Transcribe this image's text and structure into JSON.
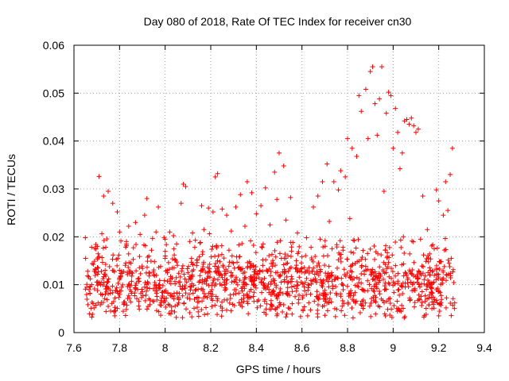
{
  "chart_data": {
    "type": "scatter",
    "title": "Day 080 of 2018, Rate Of TEC Index for receiver cn30",
    "xlabel": "GPS time / hours",
    "ylabel": "ROTI / TECUs",
    "xlim": [
      7.6,
      9.4
    ],
    "ylim": [
      0,
      0.06
    ],
    "xticks": [
      "7.6",
      "7.8",
      "8",
      "8.2",
      "8.4",
      "8.6",
      "8.8",
      "9",
      "9.2",
      "9.4"
    ],
    "yticks": [
      "0",
      "0.01",
      "0.02",
      "0.03",
      "0.04",
      "0.05",
      "0.06"
    ],
    "grid": true,
    "marker": "+",
    "marker_color": "#ff0000",
    "x_range_of_points": [
      7.65,
      9.27
    ],
    "series": [
      {
        "name": "ROTI",
        "points": [
          [
            7.65,
            0.0198
          ],
          [
            7.66,
            0.0128
          ],
          [
            7.67,
            0.0082
          ],
          [
            7.69,
            0.0149
          ],
          [
            7.7,
            0.0105
          ],
          [
            7.71,
            0.0326
          ],
          [
            7.72,
            0.0063
          ],
          [
            7.73,
            0.0285
          ],
          [
            7.74,
            0.0118
          ],
          [
            7.75,
            0.0295
          ],
          [
            7.76,
            0.0082
          ],
          [
            7.77,
            0.027
          ],
          [
            7.78,
            0.0072
          ],
          [
            7.79,
            0.0252
          ],
          [
            7.8,
            0.021
          ],
          [
            7.81,
            0.0128
          ],
          [
            7.82,
            0.006
          ],
          [
            7.83,
            0.0185
          ],
          [
            7.84,
            0.0222
          ],
          [
            7.85,
            0.0098
          ],
          [
            7.86,
            0.0153
          ],
          [
            7.87,
            0.023
          ],
          [
            7.88,
            0.0112
          ],
          [
            7.89,
            0.0205
          ],
          [
            7.9,
            0.0085
          ],
          [
            7.91,
            0.0245
          ],
          [
            7.92,
            0.028
          ],
          [
            7.93,
            0.0118
          ],
          [
            7.94,
            0.0172
          ],
          [
            7.95,
            0.0065
          ],
          [
            7.96,
            0.021
          ],
          [
            7.97,
            0.0262
          ],
          [
            7.98,
            0.0138
          ],
          [
            7.99,
            0.0098
          ],
          [
            8.0,
            0.0195
          ],
          [
            8.01,
            0.0125
          ],
          [
            8.02,
            0.021
          ],
          [
            8.03,
            0.0075
          ],
          [
            8.04,
            0.0162
          ],
          [
            8.05,
            0.0185
          ],
          [
            8.06,
            0.0105
          ],
          [
            8.07,
            0.027
          ],
          [
            8.08,
            0.031
          ],
          [
            8.09,
            0.0305
          ],
          [
            8.1,
            0.0125
          ],
          [
            8.11,
            0.0095
          ],
          [
            8.12,
            0.0208
          ],
          [
            8.13,
            0.0178
          ],
          [
            8.14,
            0.0072
          ],
          [
            8.15,
            0.0158
          ],
          [
            8.16,
            0.0265
          ],
          [
            8.17,
            0.0215
          ],
          [
            8.18,
            0.0108
          ],
          [
            8.19,
            0.026
          ],
          [
            8.2,
            0.0082
          ],
          [
            8.21,
            0.0252
          ],
          [
            8.22,
            0.0325
          ],
          [
            8.23,
            0.0332
          ],
          [
            8.24,
            0.0148
          ],
          [
            8.25,
            0.0258
          ],
          [
            8.26,
            0.01
          ],
          [
            8.27,
            0.0245
          ],
          [
            8.28,
            0.0172
          ],
          [
            8.29,
            0.0212
          ],
          [
            8.3,
            0.008
          ],
          [
            8.31,
            0.0262
          ],
          [
            8.32,
            0.0135
          ],
          [
            8.33,
            0.0288
          ],
          [
            8.34,
            0.0095
          ],
          [
            8.35,
            0.0222
          ],
          [
            8.36,
            0.0315
          ],
          [
            8.37,
            0.0148
          ],
          [
            8.38,
            0.0292
          ],
          [
            8.39,
            0.0108
          ],
          [
            8.4,
            0.0248
          ],
          [
            8.41,
            0.0068
          ],
          [
            8.42,
            0.0265
          ],
          [
            8.43,
            0.0185
          ],
          [
            8.44,
            0.0302
          ],
          [
            8.45,
            0.0128
          ],
          [
            8.46,
            0.0225
          ],
          [
            8.47,
            0.0085
          ],
          [
            8.48,
            0.0335
          ],
          [
            8.49,
            0.0278
          ],
          [
            8.5,
            0.0375
          ],
          [
            8.51,
            0.0155
          ],
          [
            8.52,
            0.0348
          ],
          [
            8.53,
            0.0235
          ],
          [
            8.54,
            0.0105
          ],
          [
            8.55,
            0.0282
          ],
          [
            8.56,
            0.0188
          ],
          [
            8.57,
            0.0075
          ],
          [
            8.58,
            0.0208
          ],
          [
            8.59,
            0.0128
          ],
          [
            8.6,
            0.0158
          ],
          [
            8.61,
            0.0095
          ],
          [
            8.62,
            0.0198
          ],
          [
            8.63,
            0.0062
          ],
          [
            8.64,
            0.0178
          ],
          [
            8.65,
            0.0262
          ],
          [
            8.66,
            0.0108
          ],
          [
            8.67,
            0.0285
          ],
          [
            8.68,
            0.0195
          ],
          [
            8.69,
            0.0315
          ],
          [
            8.7,
            0.0088
          ],
          [
            8.71,
            0.0352
          ],
          [
            8.72,
            0.0232
          ],
          [
            8.73,
            0.0125
          ],
          [
            8.74,
            0.0315
          ],
          [
            8.75,
            0.0082
          ],
          [
            8.76,
            0.0298
          ],
          [
            8.77,
            0.0338
          ],
          [
            8.78,
            0.0178
          ],
          [
            8.79,
            0.0325
          ],
          [
            8.8,
            0.0405
          ],
          [
            8.81,
            0.0238
          ],
          [
            8.82,
            0.0385
          ],
          [
            8.83,
            0.0192
          ],
          [
            8.84,
            0.0368
          ],
          [
            8.85,
            0.0495
          ],
          [
            8.86,
            0.0462
          ],
          [
            8.87,
            0.0088
          ],
          [
            8.88,
            0.0508
          ],
          [
            8.89,
            0.0405
          ],
          [
            8.9,
            0.0545
          ],
          [
            8.91,
            0.0555
          ],
          [
            8.92,
            0.0478
          ],
          [
            8.93,
            0.0412
          ],
          [
            8.94,
            0.0488
          ],
          [
            8.95,
            0.0555
          ],
          [
            8.96,
            0.0295
          ],
          [
            8.97,
            0.0458
          ],
          [
            8.98,
            0.0502
          ],
          [
            8.99,
            0.0495
          ],
          [
            9.0,
            0.0385
          ],
          [
            9.01,
            0.0468
          ],
          [
            9.02,
            0.0418
          ],
          [
            9.03,
            0.0342
          ],
          [
            9.04,
            0.0375
          ],
          [
            9.05,
            0.0442
          ],
          [
            9.06,
            0.0445
          ],
          [
            9.07,
            0.0435
          ],
          [
            9.08,
            0.0448
          ],
          [
            9.09,
            0.0432
          ],
          [
            9.1,
            0.0418
          ],
          [
            9.11,
            0.0425
          ],
          [
            9.12,
            0.0195
          ],
          [
            9.13,
            0.0285
          ],
          [
            9.14,
            0.0065
          ],
          [
            9.15,
            0.0215
          ],
          [
            9.16,
            0.0135
          ],
          [
            9.17,
            0.005
          ],
          [
            9.18,
            0.0175
          ],
          [
            9.19,
            0.0298
          ],
          [
            9.2,
            0.0275
          ],
          [
            9.21,
            0.0062
          ],
          [
            9.22,
            0.0245
          ],
          [
            9.23,
            0.0315
          ],
          [
            9.24,
            0.0255
          ],
          [
            9.25,
            0.033
          ],
          [
            9.26,
            0.0385
          ],
          [
            9.27,
            0.0062
          ]
        ]
      }
    ],
    "dense_band": {
      "description": "Dense cloud of ROTI points concentrated between roughly 0.004 and 0.02 TECUs across the full time span",
      "y_min": 0.003,
      "y_max": 0.021,
      "count": 1300
    }
  }
}
